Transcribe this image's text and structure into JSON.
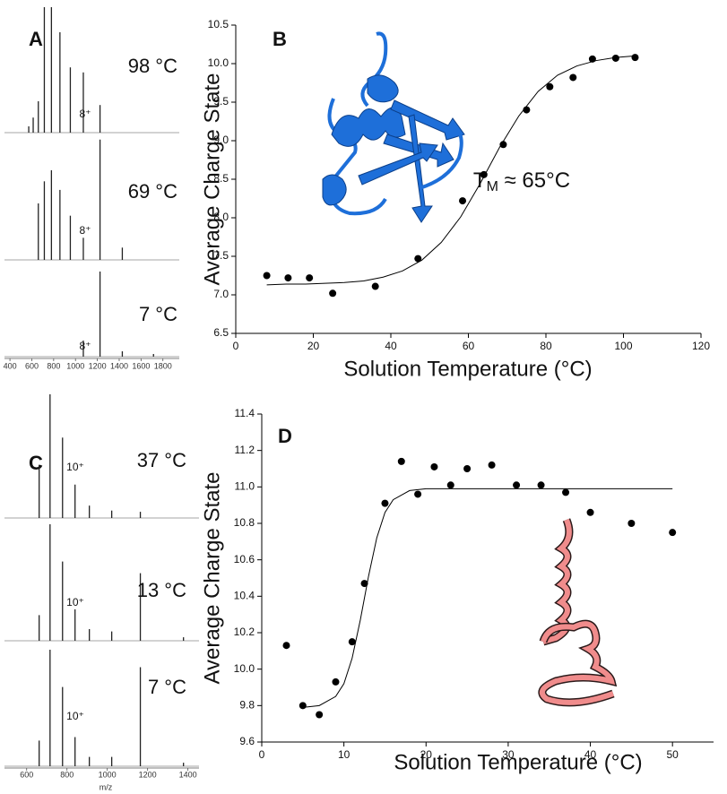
{
  "chart_data": [
    {
      "type": "spectra",
      "panel_label": "A",
      "xlim": [
        350,
        1950
      ],
      "xticks": [
        400,
        600,
        800,
        1000,
        1200,
        1400,
        1600,
        1800
      ],
      "ylim": [
        0,
        100
      ],
      "spectra": [
        {
          "name": "98 °C",
          "charge_label": "8⁺",
          "x": [
            572,
            612.8,
            659.8,
            714.8,
            779.7,
            857.6,
            952.7,
            1071.7,
            1224.6
          ],
          "values": [
            5,
            12,
            25,
            100,
            100,
            80,
            52,
            48,
            22
          ]
        },
        {
          "name": "69 °C",
          "charge_label": "8⁺",
          "x": [
            659.8,
            714.8,
            779.7,
            857.6,
            952.7,
            1071.7,
            1224.6,
            1428.5
          ],
          "values": [
            46,
            64,
            73,
            57,
            36,
            18,
            98,
            10
          ]
        },
        {
          "name": "7 °C",
          "charge_label": "8⁺",
          "x": [
            1071.7,
            1224.6,
            1428.5,
            1714
          ],
          "values": [
            18,
            95,
            6,
            3
          ]
        }
      ]
    },
    {
      "type": "scatter",
      "panel_label": "B",
      "xlabel": "Solution Temperature (°C)",
      "ylabel": "Average Charge State",
      "annotation": {
        "text": "T",
        "subscript": "M",
        "suffix": " ≈ 65°C"
      },
      "xlim": [
        0,
        120
      ],
      "xticks": [
        0,
        20,
        40,
        60,
        80,
        100,
        120
      ],
      "ylim": [
        6.5,
        10.5
      ],
      "yticks": [
        6.5,
        {
          "value": 7,
          "label": "7.0"
        },
        7.5,
        {
          "value": 8,
          "label": "8.0"
        },
        8.5,
        {
          "value": 9,
          "label": "9.0"
        },
        9.5,
        {
          "value": 10,
          "label": "10.0"
        },
        10.5
      ],
      "series": [
        {
          "style": "points",
          "color": "#000000",
          "x": [
            8,
            13.5,
            19,
            25,
            36,
            47,
            58.5,
            64,
            69,
            75,
            81,
            87,
            92,
            98,
            103
          ],
          "values": [
            7.25,
            7.22,
            7.22,
            7.02,
            7.11,
            7.47,
            8.22,
            8.56,
            8.95,
            9.4,
            9.7,
            9.82,
            10.06,
            10.07,
            10.08
          ]
        },
        {
          "style": "line",
          "color": "#000000",
          "x": [
            8,
            13,
            18,
            23,
            28,
            33,
            38,
            43,
            48,
            53,
            58,
            63,
            68,
            73,
            78,
            83,
            88,
            93,
            98,
            103
          ],
          "values": [
            7.13,
            7.14,
            7.14,
            7.15,
            7.16,
            7.18,
            7.23,
            7.31,
            7.45,
            7.68,
            8.01,
            8.44,
            8.91,
            9.32,
            9.64,
            9.85,
            9.97,
            10.04,
            10.08,
            10.1
          ]
        }
      ]
    },
    {
      "type": "spectra",
      "panel_label": "C",
      "xlabel": "m/z",
      "xlim": [
        490,
        1455
      ],
      "xticks": [
        600,
        800,
        1000,
        1200,
        1400
      ],
      "ylim": [
        0,
        100
      ],
      "spectra": [
        {
          "name": "37 °C",
          "charge_label": "10⁺",
          "x": [
            662,
            716,
            778,
            840,
            911,
            1022,
            1164
          ],
          "values": [
            43,
            100,
            65,
            27,
            10,
            6,
            5
          ]
        },
        {
          "name": "13 °C",
          "charge_label": "10⁺",
          "x": [
            662,
            716,
            778,
            840,
            911,
            1022,
            1164,
            1378
          ],
          "values": [
            22,
            100,
            68,
            27,
            10,
            8,
            58,
            3
          ]
        },
        {
          "name": "7 °C",
          "charge_label": "10⁺",
          "x": [
            662,
            716,
            778,
            840,
            911,
            1022,
            1164,
            1378
          ],
          "values": [
            22,
            100,
            68,
            25,
            8,
            8,
            85,
            3
          ]
        }
      ]
    },
    {
      "type": "scatter",
      "panel_label": "D",
      "xlabel": "Solution Temperature (°C)",
      "ylabel": "Average Charge State",
      "xlim": [
        0,
        55
      ],
      "xticks": [
        0,
        10,
        20,
        30,
        40,
        50
      ],
      "ylim": [
        9.6,
        11.4
      ],
      "yticks": [
        9.6,
        9.8,
        {
          "value": 10,
          "label": "10.0"
        },
        10.2,
        10.4,
        10.6,
        10.8,
        {
          "value": 11,
          "label": "11.0"
        },
        11.2,
        11.4
      ],
      "series": [
        {
          "style": "points",
          "color": "#000000",
          "x": [
            3,
            5,
            7,
            9,
            11,
            12.5,
            15,
            17,
            19,
            21,
            23,
            25,
            28,
            31,
            34,
            37,
            40,
            45,
            50
          ],
          "values": [
            10.13,
            9.8,
            9.75,
            9.93,
            10.15,
            10.47,
            10.91,
            11.14,
            10.96,
            11.11,
            11.01,
            11.1,
            11.12,
            11.01,
            11.01,
            10.97,
            10.86,
            10.8,
            10.75
          ]
        },
        {
          "style": "line",
          "color": "#000000",
          "x": [
            5,
            7,
            9,
            10,
            11,
            12,
            12.5,
            13,
            14,
            15,
            16,
            18,
            20,
            30,
            40,
            50
          ],
          "values": [
            9.79,
            9.8,
            9.85,
            9.92,
            10.06,
            10.27,
            10.39,
            10.51,
            10.72,
            10.86,
            10.93,
            10.98,
            10.99,
            10.99,
            10.99,
            10.99
          ]
        }
      ]
    }
  ]
}
